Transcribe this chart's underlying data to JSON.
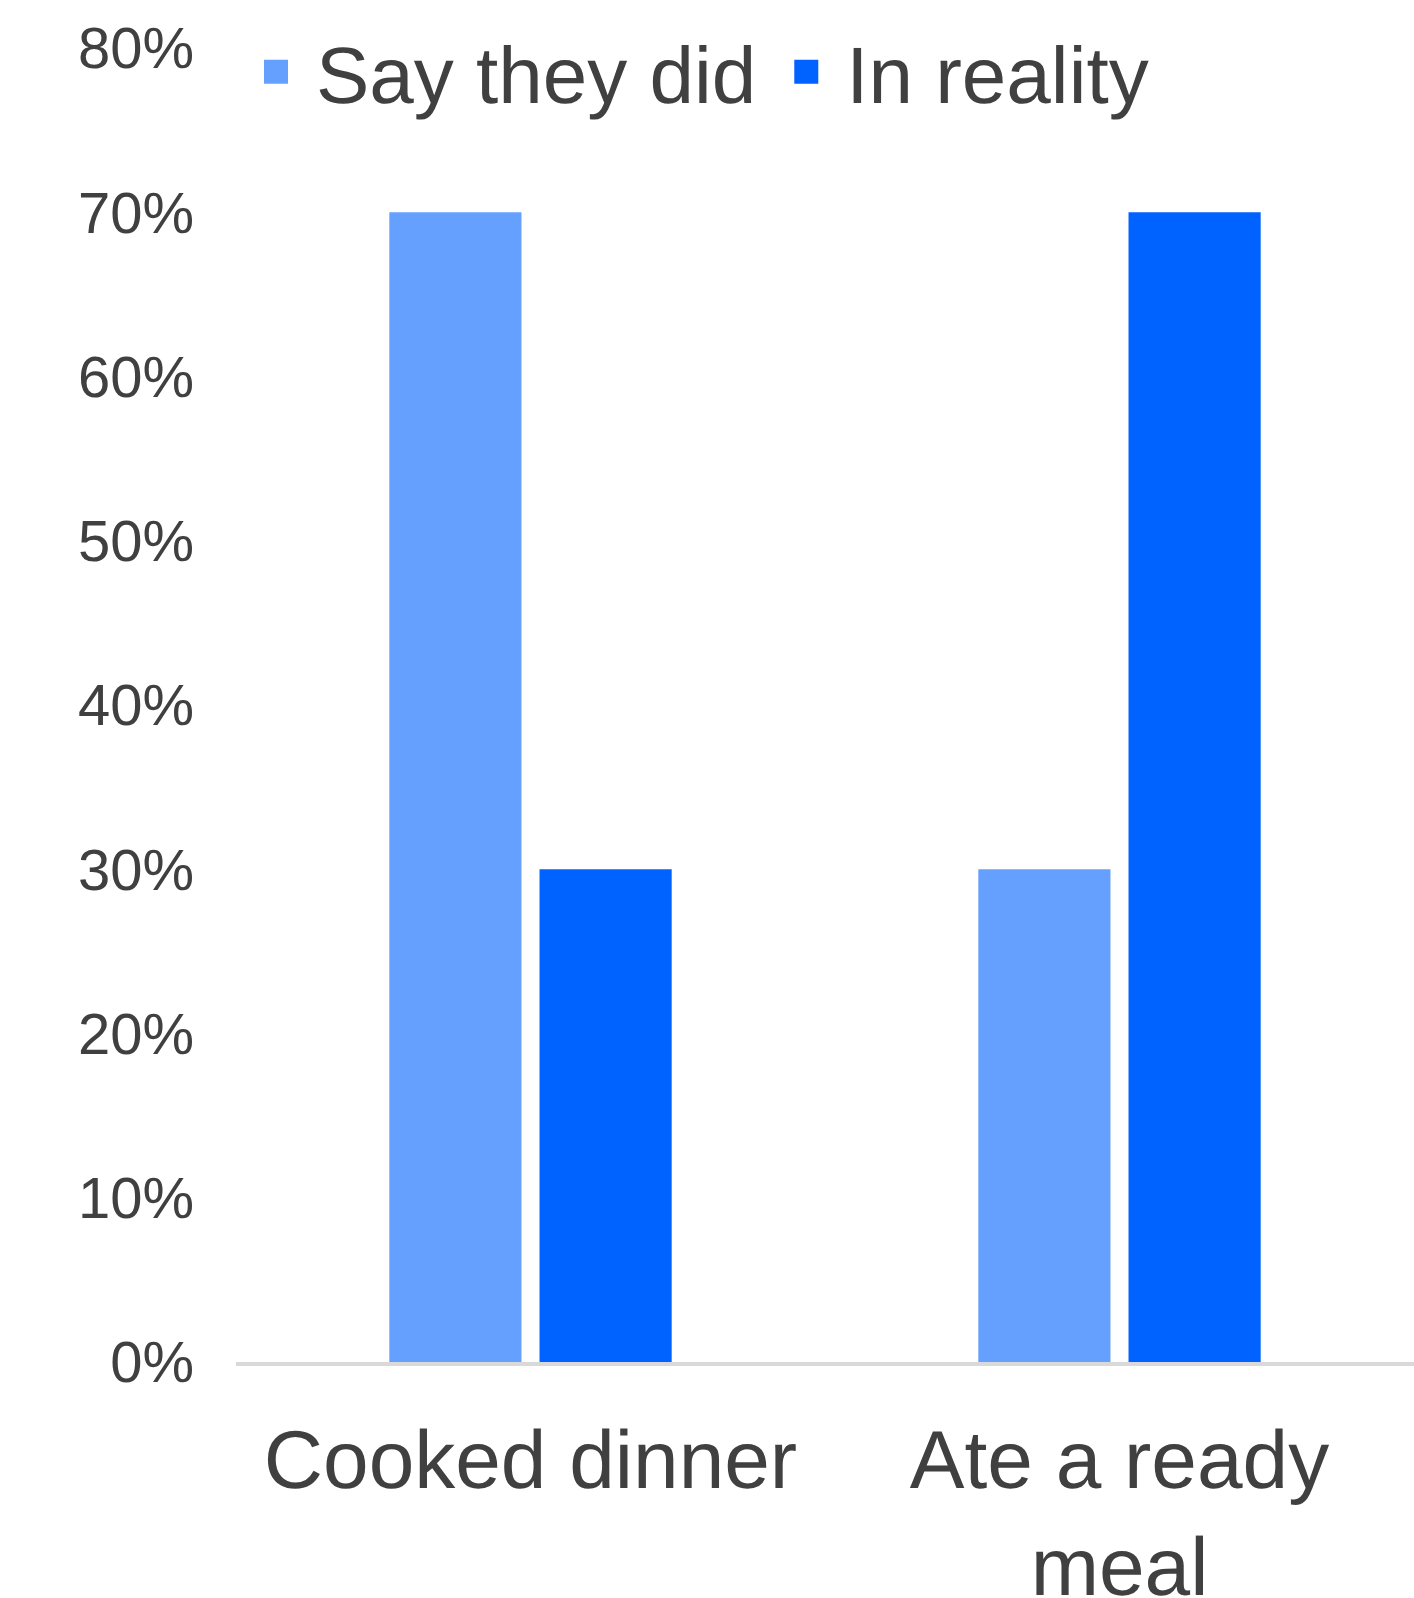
{
  "chart_data": {
    "type": "bar",
    "categories": [
      "Cooked dinner",
      "Ate a ready meal"
    ],
    "series": [
      {
        "name": "Say they did",
        "color": "#66a0ff",
        "values": [
          70,
          30
        ]
      },
      {
        "name": "In reality",
        "color": "#0062ff",
        "values": [
          30,
          70
        ]
      }
    ],
    "ylim": [
      0,
      80
    ],
    "yticks": [
      {
        "value": 0,
        "label": "0%"
      },
      {
        "value": 10,
        "label": "10%"
      },
      {
        "value": 20,
        "label": "20%"
      },
      {
        "value": 30,
        "label": "30%"
      },
      {
        "value": 40,
        "label": "40%"
      },
      {
        "value": 50,
        "label": "50%"
      },
      {
        "value": 60,
        "label": "60%"
      },
      {
        "value": 70,
        "label": "70%"
      },
      {
        "value": 80,
        "label": "80%"
      }
    ],
    "grid": false,
    "legend": "top"
  }
}
